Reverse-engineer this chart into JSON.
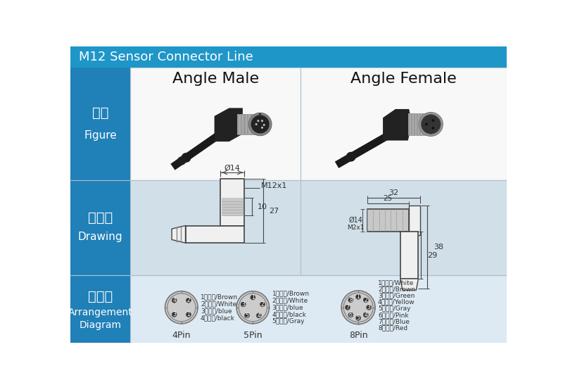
{
  "title": "M12 Sensor Connector Line",
  "title_bg": "#1e96c8",
  "title_color": "#ffffff",
  "label_bg": "#2080b8",
  "label_color": "#ffffff",
  "fig_panel_bg": "#ffffff",
  "draw_panel_bg": "#d0dfe8",
  "arr_panel_bg": "#ddeaf4",
  "border_color": "#c0cfd8",
  "angle_male_label": "Angle Male",
  "angle_female_label": "Angle Female",
  "col1_cn": "图例",
  "col1_en": "Figure",
  "col2_cn": "尺寸图",
  "col2_en": "Drawing",
  "col3_cn": "针位图",
  "col3_en1": "Arrangement",
  "col3_en2": "Diagram",
  "pin4_labels": [
    "1、棕色/Brown",
    "2、白色/White",
    "3、蓝色/blue",
    "4、黑色/black"
  ],
  "pin5_labels": [
    "1、棕色/Brown",
    "2、白色/White",
    "3、蓝色/blue",
    "4、黑色/black",
    "5、灰色/Gray"
  ],
  "pin8_labels": [
    "1、白色/White",
    "2、棕色/Brown",
    "3、绿色/Green",
    "4、黄色/Yellow",
    "5、灰色/Gray",
    "6、粉色/Pink",
    "7、蓝色/Blue",
    "8、红色/Red"
  ],
  "pin4_label": "4Pin",
  "pin5_label": "5Pin",
  "pin8_label": "8Pin"
}
